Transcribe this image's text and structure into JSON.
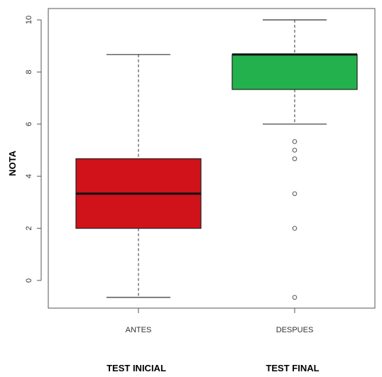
{
  "chart_data": {
    "type": "boxplot",
    "ylabel": "NOTA",
    "ylim": [
      -1,
      10.5
    ],
    "yticks": [
      0,
      2,
      4,
      6,
      8,
      10
    ],
    "grid": false,
    "boxes": [
      {
        "category": "ANTES",
        "group_label": "TEST INICIAL",
        "color": "#d0121b",
        "whisker_low": -0.65,
        "q1": 2.0,
        "median": 3.33,
        "q3": 4.67,
        "whisker_high": 8.67,
        "outliers": []
      },
      {
        "category": "DESPUES",
        "group_label": "TEST FINAL",
        "color": "#22b14c",
        "whisker_low": 6.0,
        "q1": 7.33,
        "median": 8.67,
        "q3": 8.67,
        "whisker_high": 10.0,
        "outliers": [
          5.33,
          5.0,
          4.67,
          3.33,
          2.0,
          -0.65
        ]
      }
    ]
  }
}
